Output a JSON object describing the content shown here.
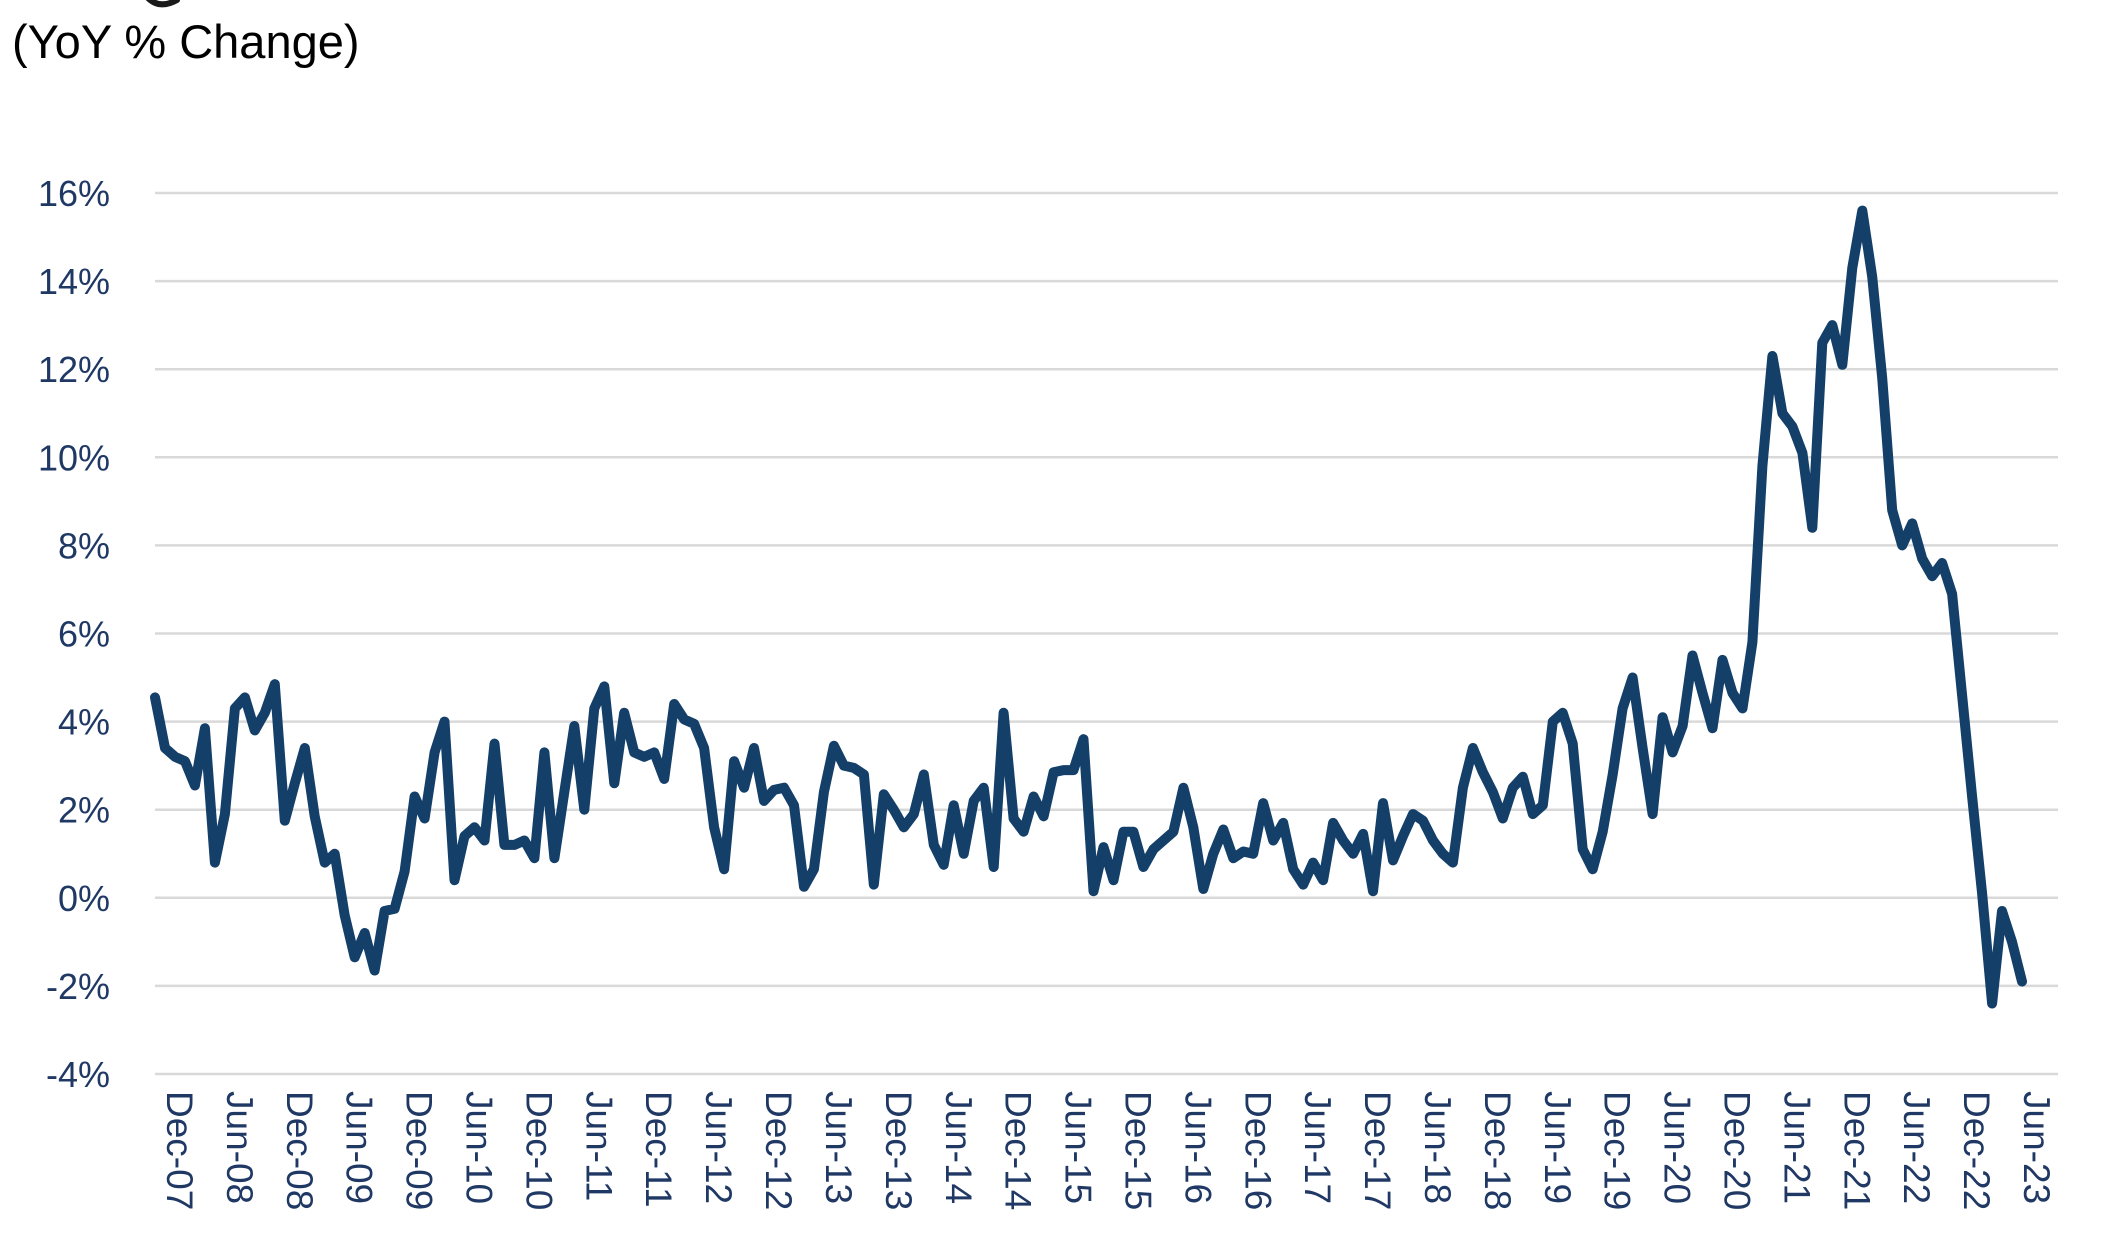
{
  "title": {
    "line2": "(YoY % Change)",
    "note": "first title line is cut off at top of screenshot"
  },
  "chart_data": {
    "type": "line",
    "series": [
      {
        "name": "YoY % Change",
        "start": "Dec-2007",
        "end": "Jul-2023",
        "frequency": "monthly",
        "unit": "percent",
        "values": [
          4.55,
          3.4,
          3.2,
          3.1,
          2.55,
          3.85,
          0.8,
          1.9,
          4.3,
          4.55,
          3.8,
          4.2,
          4.85,
          1.75,
          2.6,
          3.4,
          1.85,
          0.8,
          1.0,
          -0.4,
          -1.35,
          -0.8,
          -1.65,
          -0.3,
          -0.25,
          0.6,
          2.3,
          1.8,
          3.3,
          4.0,
          0.4,
          1.4,
          1.6,
          1.3,
          3.5,
          1.2,
          1.2,
          1.3,
          0.9,
          3.3,
          0.9,
          2.4,
          3.9,
          2.0,
          4.3,
          4.8,
          2.6,
          4.2,
          3.3,
          3.2,
          3.3,
          2.7,
          4.4,
          4.05,
          3.95,
          3.4,
          1.6,
          0.65,
          3.1,
          2.5,
          3.4,
          2.2,
          2.45,
          2.5,
          2.1,
          0.25,
          0.65,
          2.4,
          3.45,
          3.0,
          2.95,
          2.8,
          0.3,
          2.35,
          2.0,
          1.6,
          1.9,
          2.8,
          1.2,
          0.75,
          2.1,
          1.0,
          2.2,
          2.5,
          0.7,
          4.2,
          1.8,
          1.5,
          2.3,
          1.85,
          2.85,
          2.9,
          2.9,
          3.6,
          0.15,
          1.15,
          0.4,
          1.5,
          1.5,
          0.7,
          1.1,
          1.3,
          1.5,
          2.5,
          1.6,
          0.2,
          1.0,
          1.55,
          0.9,
          1.05,
          1.0,
          2.15,
          1.3,
          1.7,
          0.65,
          0.3,
          0.8,
          0.4,
          1.7,
          1.3,
          1.0,
          1.45,
          0.15,
          2.15,
          0.85,
          1.4,
          1.9,
          1.75,
          1.3,
          1.0,
          0.8,
          2.5,
          3.4,
          2.85,
          2.4,
          1.8,
          2.5,
          2.75,
          1.9,
          2.1,
          4.0,
          4.2,
          3.5,
          1.1,
          0.65,
          1.5,
          2.8,
          4.3,
          5.0,
          3.4,
          1.9,
          4.1,
          3.3,
          3.9,
          5.5,
          4.65,
          3.85,
          5.4,
          4.65,
          4.3,
          5.8,
          9.8,
          12.3,
          11.0,
          10.7,
          10.1,
          8.4,
          12.6,
          13.0,
          12.1,
          14.3,
          15.6,
          14.1,
          11.8,
          8.8,
          8.0,
          8.5,
          7.7,
          7.3,
          7.6,
          6.9,
          4.6,
          2.3,
          0.1,
          -2.4,
          -0.3,
          -1.0,
          -1.9
        ]
      }
    ],
    "y_tick_labels": [
      "16%",
      "14%",
      "12%",
      "10%",
      "8%",
      "6%",
      "4%",
      "2%",
      "0%",
      "-2%",
      "-4%"
    ],
    "y_tick_values": [
      16,
      14,
      12,
      10,
      8,
      6,
      4,
      2,
      0,
      -2,
      -4
    ],
    "ylim": [
      -4,
      16
    ],
    "x_tick_labels": [
      "Dec-07",
      "Jun-08",
      "Dec-08",
      "Jun-09",
      "Dec-09",
      "Jun-10",
      "Dec-10",
      "Jun-11",
      "Dec-11",
      "Jun-12",
      "Dec-12",
      "Jun-13",
      "Dec-13",
      "Jun-14",
      "Dec-14",
      "Jun-15",
      "Dec-15",
      "Jun-16",
      "Dec-16",
      "Jun-17",
      "Dec-17",
      "Jun-18",
      "Dec-18",
      "Jun-19",
      "Dec-19",
      "Jun-20",
      "Dec-20",
      "Jun-21",
      "Dec-21",
      "Jun-22",
      "Dec-22",
      "Jun-23"
    ],
    "x_tick_label_rotation": "90deg clockwise, read top to bottom",
    "grid": "horizontal only",
    "legend": "none",
    "colors": {
      "line": "#143F69",
      "tick_labels": "#1F3864",
      "gridlines": "#D9D9D9",
      "title": "#000000",
      "background": "#FFFFFF"
    }
  }
}
